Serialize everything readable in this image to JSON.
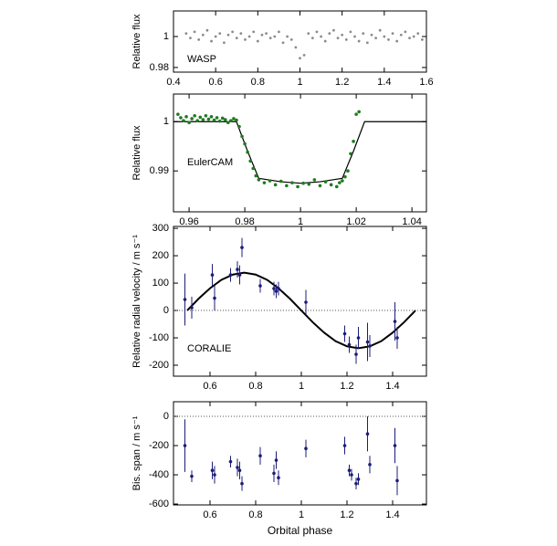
{
  "chart_data": [
    {
      "type": "scatter",
      "y_label": "Relative flux",
      "annotation": "WASP",
      "color": "#8c8c8c",
      "x": [
        0.46,
        0.48,
        0.5,
        0.52,
        0.54,
        0.56,
        0.58,
        0.6,
        0.62,
        0.64,
        0.66,
        0.68,
        0.7,
        0.72,
        0.74,
        0.76,
        0.78,
        0.8,
        0.82,
        0.84,
        0.86,
        0.88,
        0.9,
        0.92,
        0.94,
        0.96,
        0.98,
        1,
        1.02,
        1.04,
        1.06,
        1.08,
        1.1,
        1.12,
        1.14,
        1.16,
        1.18,
        1.2,
        1.22,
        1.24,
        1.26,
        1.28,
        1.3,
        1.32,
        1.34,
        1.36,
        1.38,
        1.4,
        1.42,
        1.44,
        1.46,
        1.48,
        1.5,
        1.52,
        1.54,
        1.56,
        1.58
      ],
      "values": [
        1.002,
        0.999,
        1.003,
        0.998,
        1.001,
        1.004,
        0.997,
        1,
        1.002,
        0.996,
        1.001,
        1.003,
        0.999,
        1.002,
        0.998,
        1,
        1.003,
        0.997,
        1.001,
        1.002,
        0.999,
        1,
        1.003,
        0.996,
        1,
        0.998,
        0.993,
        0.986,
        0.988,
        1.002,
        0.999,
        1.003,
        1,
        0.997,
        1.002,
        1.004,
        0.999,
        1.001,
        0.998,
        1.003,
        1,
        0.997,
        1.002,
        0.996,
        1.001,
        0.999,
        1.004,
        1,
        0.998,
        1.002,
        0.997,
        1.001,
        1.003,
        0.999,
        1,
        1.002,
        0.998
      ],
      "xlim": [
        0.4,
        1.6
      ],
      "ylim": [
        0.977,
        1.0165
      ],
      "xticks": [
        0.4,
        0.6,
        0.8,
        1,
        1.2,
        1.4,
        1.6
      ],
      "yticks": [
        0.98,
        1
      ]
    },
    {
      "type": "scatter",
      "y_label": "Relative flux",
      "annotation": "EulerCAM",
      "color": "#1f7a1f",
      "x": [
        0.956,
        0.957,
        0.958,
        0.959,
        0.96,
        0.961,
        0.962,
        0.963,
        0.964,
        0.965,
        0.966,
        0.967,
        0.968,
        0.969,
        0.97,
        0.971,
        0.972,
        0.973,
        0.974,
        0.975,
        0.976,
        0.977,
        0.978,
        0.979,
        0.98,
        0.981,
        0.982,
        0.983,
        0.984,
        0.985,
        0.987,
        0.989,
        0.991,
        0.993,
        0.995,
        0.997,
        0.999,
        1.001,
        1.003,
        1.005,
        1.007,
        1.009,
        1.011,
        1.013,
        1.014,
        1.015,
        1.016,
        1.017,
        1.018,
        1.019,
        1.02,
        1.021
      ],
      "values": [
        1.0015,
        1.0008,
        1.0002,
        1.001,
        0.9998,
        1.0006,
        1.0012,
        1.0002,
        1.0009,
        1.0004,
        1.0012,
        1.0005,
        1.001,
        1.0003,
        1.0008,
        1.0001,
        1.0007,
        1.0004,
        0.9998,
        1.0002,
        1.0006,
        1.0003,
        0.999,
        0.997,
        0.9955,
        0.9938,
        0.992,
        0.9905,
        0.989,
        0.9882,
        0.9876,
        0.988,
        0.9872,
        0.9879,
        0.987,
        0.9876,
        0.9868,
        0.9875,
        0.9873,
        0.9882,
        0.987,
        0.9878,
        0.9872,
        0.9868,
        0.9876,
        0.988,
        0.9888,
        0.99,
        0.9935,
        0.996,
        1.0015,
        1.002
      ],
      "model": {
        "x": [
          0.9544,
          0.977,
          0.981,
          0.985,
          0.993,
          1,
          1.007,
          1.015,
          1.019,
          1.023,
          1.0452
        ],
        "values": [
          1,
          1,
          0.994,
          0.9885,
          0.9878,
          0.9875,
          0.9878,
          0.9885,
          0.994,
          1,
          1
        ]
      },
      "xlim": [
        0.9544,
        1.0452
      ],
      "ylim": [
        0.9817,
        1.0056
      ],
      "xticks": [
        0.96,
        0.98,
        1,
        1.02,
        1.04
      ],
      "yticks": [
        0.99,
        1
      ]
    },
    {
      "type": "errorbar",
      "y_label": "Relative radial velocity / m s⁻¹",
      "annotation": "CORALIE",
      "color": "#1c1c78",
      "x": [
        0.49,
        0.52,
        0.61,
        0.62,
        0.69,
        0.72,
        0.73,
        0.74,
        0.82,
        0.88,
        0.89,
        0.9,
        1.02,
        1.19,
        1.21,
        1.24,
        1.25,
        1.29,
        1.3,
        1.41,
        1.42
      ],
      "values": [
        40,
        10,
        130,
        45,
        130,
        150,
        130,
        230,
        90,
        80,
        70,
        80,
        30,
        -85,
        -125,
        -160,
        -100,
        -115,
        -130,
        -40,
        -100
      ],
      "errors": [
        95,
        40,
        40,
        45,
        25,
        30,
        35,
        35,
        25,
        25,
        25,
        25,
        45,
        30,
        30,
        35,
        40,
        70,
        40,
        70,
        40
      ],
      "model": {
        "x": [
          0.5,
          0.55,
          0.6,
          0.65,
          0.7,
          0.75,
          0.8,
          0.85,
          0.9,
          0.95,
          1,
          1.05,
          1.1,
          1.15,
          1.2,
          1.25,
          1.3,
          1.35,
          1.4,
          1.45,
          1.5
        ],
        "values": [
          0,
          43,
          81,
          112,
          131,
          138,
          131,
          112,
          81,
          43,
          0,
          -43,
          -81,
          -112,
          -131,
          -138,
          -131,
          -112,
          -81,
          -43,
          0
        ]
      },
      "reference_line": 0,
      "xlim": [
        0.44,
        1.548
      ],
      "ylim": [
        -240,
        307
      ],
      "xticks": [
        0.6,
        0.8,
        1,
        1.2,
        1.4
      ],
      "yticks": [
        -200,
        -100,
        0,
        100,
        200,
        300
      ]
    },
    {
      "type": "errorbar",
      "y_label": "Bis. span / m s⁻¹",
      "x_label": "Orbital phase",
      "color": "#1c1c78",
      "x": [
        0.49,
        0.52,
        0.61,
        0.62,
        0.69,
        0.72,
        0.73,
        0.74,
        0.82,
        0.88,
        0.89,
        0.9,
        1.02,
        1.19,
        1.21,
        1.22,
        1.24,
        1.25,
        1.29,
        1.3,
        1.41,
        1.42
      ],
      "values": [
        -200,
        -410,
        -370,
        -400,
        -310,
        -350,
        -370,
        -460,
        -270,
        -390,
        -300,
        -420,
        -220,
        -200,
        -370,
        -400,
        -460,
        -430,
        -120,
        -330,
        -200,
        -440
      ],
      "errors": [
        180,
        40,
        60,
        60,
        40,
        60,
        60,
        50,
        60,
        60,
        60,
        50,
        60,
        60,
        40,
        40,
        40,
        40,
        120,
        60,
        120,
        100
      ],
      "reference_line": 0,
      "xlim": [
        0.44,
        1.548
      ],
      "ylim": [
        -606,
        100
      ],
      "xticks": [
        0.6,
        0.8,
        1,
        1.2,
        1.4
      ],
      "yticks": [
        -600,
        -400,
        -200,
        0
      ]
    }
  ]
}
